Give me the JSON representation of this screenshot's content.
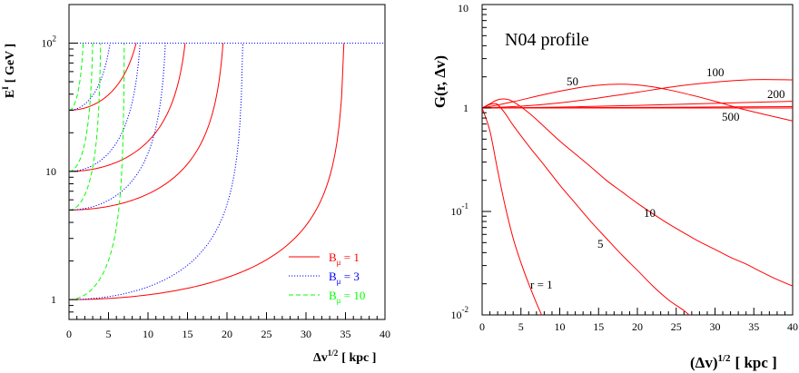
{
  "colors": {
    "red": "#ff0000",
    "blue": "#0000ff",
    "green": "#00ff00",
    "axis": "#000000"
  },
  "chart_data": [
    {
      "type": "line",
      "title": "",
      "xlabel_main": "Δv",
      "xlabel_sup": "1/2",
      "xlabel_unit": "[ kpc ]",
      "ylabel_main": "E",
      "ylabel_sup": "I",
      "ylabel_unit": "[ GeV ]",
      "xlim": [
        0,
        40
      ],
      "ylim": [
        0.7,
        200
      ],
      "yscale": "log",
      "grid": false,
      "legend_position": "bottom-right",
      "x_ticks": [
        "0",
        "5",
        "10",
        "15",
        "20",
        "25",
        "30",
        "35",
        "40"
      ],
      "y_ticks": [
        {
          "base": "1",
          "exp": ""
        },
        {
          "base": "10",
          "exp": ""
        },
        {
          "base": "10",
          "exp": "2"
        }
      ],
      "legend": [
        {
          "label": "B",
          "sub": "μ",
          "rest": " = 1",
          "color": "red",
          "style": "solid"
        },
        {
          "label": "B",
          "sub": "μ",
          "rest": " = 3",
          "color": "blue",
          "style": "dotted"
        },
        {
          "label": "B",
          "sub": "μ",
          "rest": " = 10",
          "color": "green",
          "style": "dashed"
        }
      ],
      "ceiling": 100,
      "series": [
        {
          "B": 1,
          "E0": 1,
          "xmax": 34.8,
          "color": "red",
          "style": "solid"
        },
        {
          "B": 1,
          "E0": 5,
          "xmax": 19.5,
          "color": "red",
          "style": "solid"
        },
        {
          "B": 1,
          "E0": 10,
          "xmax": 14.7,
          "color": "red",
          "style": "solid"
        },
        {
          "B": 1,
          "E0": 30,
          "xmax": 8.5,
          "color": "red",
          "style": "solid"
        },
        {
          "B": 3,
          "E0": 1,
          "xmax": 22.0,
          "color": "blue",
          "style": "dotted"
        },
        {
          "B": 3,
          "E0": 5,
          "xmax": 12.2,
          "color": "blue",
          "style": "dotted"
        },
        {
          "B": 3,
          "E0": 10,
          "xmax": 9.0,
          "color": "blue",
          "style": "dotted"
        },
        {
          "B": 3,
          "E0": 30,
          "xmax": 5.2,
          "color": "blue",
          "style": "dotted"
        },
        {
          "B": 10,
          "E0": 1,
          "xmax": 7.0,
          "color": "green",
          "style": "dashed"
        },
        {
          "B": 10,
          "E0": 5,
          "xmax": 4.0,
          "color": "green",
          "style": "dashed"
        },
        {
          "B": 10,
          "E0": 10,
          "xmax": 3.0,
          "color": "green",
          "style": "dashed"
        },
        {
          "B": 10,
          "E0": 30,
          "xmax": 1.8,
          "color": "green",
          "style": "dashed"
        }
      ]
    },
    {
      "type": "line",
      "title": "N04 profile",
      "xlabel_main": "(Δv)",
      "xlabel_sup": "1/2",
      "xlabel_unit": "[ kpc ]",
      "ylabel": "G(r, Δv)",
      "xlim": [
        0,
        40
      ],
      "ylim": [
        0.01,
        10
      ],
      "yscale": "log",
      "grid": false,
      "x_ticks": [
        "0",
        "5",
        "10",
        "15",
        "20",
        "25",
        "30",
        "35",
        "40"
      ],
      "y_ticks": [
        {
          "base": "10",
          "exp": "-2"
        },
        {
          "base": "10",
          "exp": "-1"
        },
        {
          "base": "1",
          "exp": ""
        },
        {
          "base": "10",
          "exp": ""
        }
      ],
      "series": [
        {
          "label": "r = 1",
          "x": [
            0,
            1,
            2,
            3,
            4,
            5,
            6,
            7,
            8
          ],
          "y": [
            1.0,
            0.6,
            0.25,
            0.11,
            0.055,
            0.032,
            0.02,
            0.013,
            0.0088
          ]
        },
        {
          "label": "5",
          "x": [
            0,
            1,
            1.5,
            2,
            3,
            4,
            6,
            8,
            10,
            12,
            14,
            16,
            18,
            20,
            22,
            24,
            26,
            27
          ],
          "y": [
            1.0,
            1.08,
            1.1,
            1.08,
            0.88,
            0.68,
            0.43,
            0.28,
            0.18,
            0.12,
            0.08,
            0.055,
            0.038,
            0.027,
            0.019,
            0.014,
            0.011,
            0.0095
          ]
        },
        {
          "label": "10",
          "x": [
            0,
            1,
            2,
            3,
            4,
            6,
            8,
            10,
            12,
            14,
            16,
            18,
            20,
            22,
            24,
            26,
            28,
            30,
            32,
            34,
            36,
            38,
            40
          ],
          "y": [
            1.0,
            1.1,
            1.2,
            1.22,
            1.15,
            0.9,
            0.66,
            0.48,
            0.36,
            0.27,
            0.2,
            0.155,
            0.12,
            0.095,
            0.076,
            0.062,
            0.051,
            0.043,
            0.036,
            0.031,
            0.026,
            0.022,
            0.019
          ]
        },
        {
          "label": "50",
          "x": [
            0,
            4,
            8,
            12,
            15,
            18,
            21,
            24,
            27,
            30,
            33,
            36,
            40
          ],
          "y": [
            1.0,
            1.15,
            1.35,
            1.55,
            1.66,
            1.7,
            1.64,
            1.5,
            1.33,
            1.16,
            1.0,
            0.88,
            0.75
          ]
        },
        {
          "label": "100",
          "x": [
            0,
            5,
            10,
            15,
            20,
            25,
            30,
            35,
            40
          ],
          "y": [
            1.0,
            1.04,
            1.12,
            1.25,
            1.42,
            1.62,
            1.78,
            1.88,
            1.87
          ]
        },
        {
          "label": "200",
          "x": [
            0,
            10,
            20,
            30,
            40
          ],
          "y": [
            1.0,
            1.02,
            1.06,
            1.11,
            1.16
          ]
        },
        {
          "label": "500",
          "x": [
            0,
            10,
            20,
            30,
            40
          ],
          "y": [
            1.0,
            1.005,
            1.012,
            1.022,
            1.032
          ]
        }
      ]
    }
  ]
}
